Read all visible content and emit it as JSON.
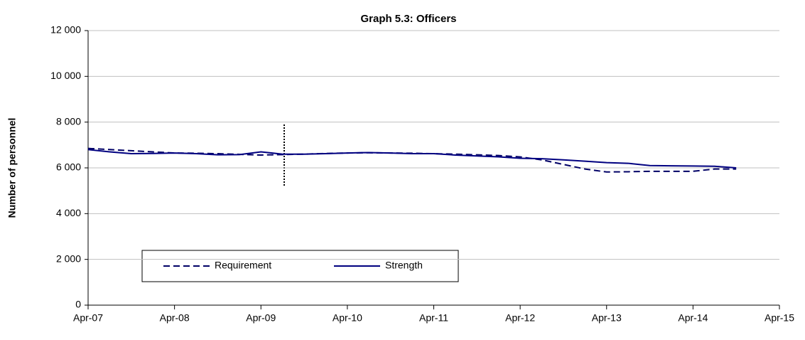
{
  "chart_data": {
    "type": "line",
    "title": "Graph 5.3: Officers",
    "y_label": "Number of personnel",
    "categories": [
      "Apr-07",
      null,
      null,
      null,
      "Apr-08",
      null,
      null,
      null,
      "Apr-09",
      null,
      null,
      null,
      "Apr-10",
      null,
      null,
      null,
      "Apr-11",
      null,
      null,
      null,
      "Apr-12",
      null,
      null,
      null,
      "Apr-13",
      null,
      null,
      null,
      "Apr-14",
      null,
      null,
      null,
      "Apr-15"
    ],
    "series": [
      {
        "name": "Requirement",
        "color": "#000066",
        "dash": true,
        "values": [
          6850,
          6800,
          6750,
          6700,
          6650,
          6640,
          6620,
          6590,
          6560,
          6580,
          6600,
          6630,
          6650,
          6660,
          6650,
          6640,
          6620,
          6600,
          6570,
          6540,
          6480,
          6350,
          6150,
          5950,
          5820,
          5830,
          5850,
          5850,
          5850,
          5950,
          5950,
          null,
          null
        ]
      },
      {
        "name": "Strength",
        "color": "#000080",
        "dash": false,
        "values": [
          6800,
          6700,
          6620,
          6630,
          6650,
          6620,
          6570,
          6580,
          6700,
          6600,
          6600,
          6620,
          6650,
          6670,
          6650,
          6620,
          6620,
          6560,
          6520,
          6480,
          6420,
          6400,
          6350,
          6290,
          6230,
          6200,
          6100,
          6090,
          6080,
          6070,
          6000,
          null,
          null
        ]
      }
    ],
    "ylim": [
      0,
      12000
    ],
    "yticks": [
      0,
      {
        "value": 2000,
        "label": "2 000"
      },
      {
        "value": 4000,
        "label": "4 000"
      },
      {
        "value": 6000,
        "label": "6 000"
      },
      {
        "value": 8000,
        "label": "8 000"
      },
      {
        "value": 10000,
        "label": "10 000"
      },
      {
        "value": 12000,
        "label": "12 000"
      }
    ],
    "grid": true
  }
}
